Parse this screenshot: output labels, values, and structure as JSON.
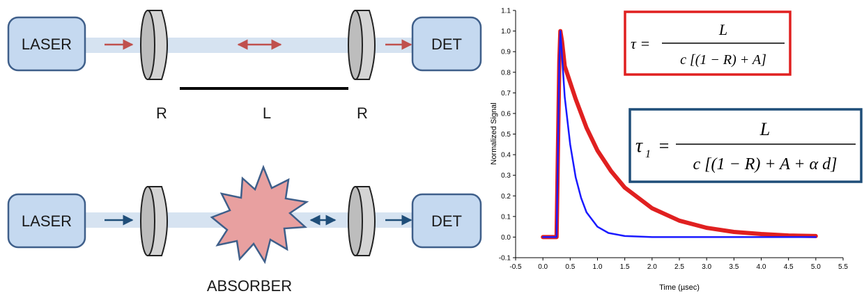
{
  "diagram": {
    "top": {
      "laser_label": "LASER",
      "det_label": "DET",
      "mirror_left_label": "R",
      "length_label": "L",
      "mirror_right_label": "R",
      "arrow_color": "#c0504d"
    },
    "bottom": {
      "laser_label": "LASER",
      "det_label": "DET",
      "absorber_label": "ABSORBER",
      "arrow_color": "#1f4e79",
      "absorber_color": "#e8a0a0"
    },
    "colors": {
      "box_fill": "#c5d9f0",
      "box_stroke": "#3f5f8a",
      "beam": "#d6e3f1"
    }
  },
  "equations": {
    "tau": {
      "lhs": "τ =",
      "numerator": "L",
      "denominator": "c [(1 − R) + A]",
      "border_color": "#e02020"
    },
    "tau1": {
      "lhs_symbol": "τ",
      "lhs_subscript": "1",
      "lhs_equals": "=",
      "numerator": "L",
      "denominator": "c [(1 − R) + A + α d]",
      "border_color": "#1f4e79"
    }
  },
  "chart_data": {
    "type": "line",
    "xlabel": "Time (µsec)",
    "ylabel": "Normalized Signal",
    "xlim": [
      -0.5,
      5.5
    ],
    "ylim": [
      -0.1,
      1.1
    ],
    "x_ticks": [
      "-0.5",
      "0.0",
      "0.5",
      "1.0",
      "1.5",
      "2.0",
      "2.5",
      "3.0",
      "3.5",
      "4.0",
      "4.5",
      "5.0",
      "5.5"
    ],
    "y_ticks": [
      "-0.1",
      "0.0",
      "0.1",
      "0.2",
      "0.3",
      "0.4",
      "0.5",
      "0.6",
      "0.7",
      "0.8",
      "0.9",
      "1.0",
      "1.1"
    ],
    "series": [
      {
        "color": "#e02020",
        "x": [
          0.0,
          0.25,
          0.3,
          0.32,
          0.35,
          0.4,
          0.5,
          0.6,
          0.8,
          1.0,
          1.25,
          1.5,
          2.0,
          2.5,
          3.0,
          3.5,
          4.0,
          4.5,
          5.0
        ],
        "y": [
          0.0,
          0.0,
          0.85,
          1.0,
          0.95,
          0.83,
          0.75,
          0.67,
          0.53,
          0.42,
          0.32,
          0.24,
          0.14,
          0.08,
          0.045,
          0.025,
          0.015,
          0.008,
          0.005
        ]
      },
      {
        "color": "#1a1aff",
        "x": [
          0.0,
          0.25,
          0.3,
          0.32,
          0.35,
          0.4,
          0.5,
          0.6,
          0.7,
          0.8,
          1.0,
          1.2,
          1.5,
          2.0,
          3.0,
          4.0,
          5.0
        ],
        "y": [
          0.0,
          0.0,
          0.85,
          1.0,
          0.88,
          0.68,
          0.45,
          0.29,
          0.19,
          0.12,
          0.05,
          0.02,
          0.005,
          0.0,
          0.0,
          0.0,
          0.0
        ]
      }
    ]
  }
}
